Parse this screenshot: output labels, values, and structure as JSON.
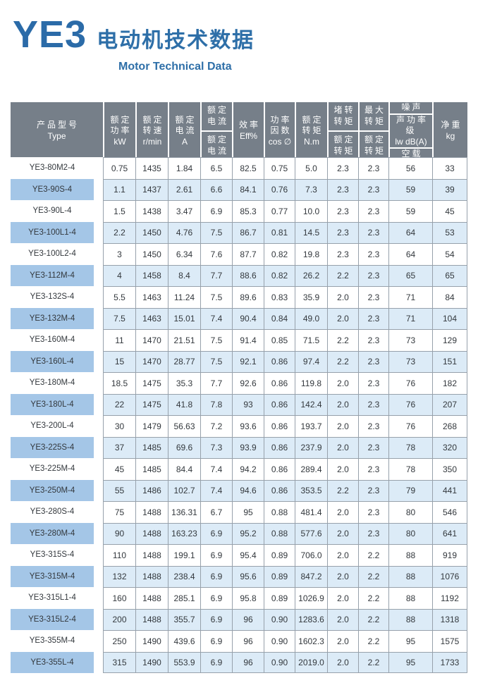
{
  "title": {
    "brand": "YE3",
    "heading": "电动机技术数据",
    "subtitle": "Motor Technical Data"
  },
  "colors": {
    "accent_blue": "#2b6ba8",
    "header_bg": "#767f89",
    "stripe_bg": "#dcebf7",
    "type_chip_bg": "#a4c6e7",
    "grid_border": "#97a1ab"
  },
  "table": {
    "columns": [
      {
        "id": "type",
        "groups": [
          [
            "产品型号",
            "Type"
          ]
        ]
      },
      {
        "id": "rated-power",
        "groups": [
          [
            "额定",
            "功率",
            "kW"
          ]
        ]
      },
      {
        "id": "rated-speed",
        "groups": [
          [
            "额定",
            "转速",
            "r/min"
          ]
        ]
      },
      {
        "id": "rated-current",
        "groups": [
          [
            "额定",
            "电流",
            "A"
          ]
        ]
      },
      {
        "id": "current-ratio",
        "groups": [
          [
            "额定",
            "电流"
          ],
          [
            "额定",
            "电流"
          ]
        ]
      },
      {
        "id": "efficiency",
        "groups": [
          [
            "效率",
            "Eff%"
          ]
        ]
      },
      {
        "id": "power-factor",
        "groups": [
          [
            "功率",
            "因数",
            "cos ∅"
          ]
        ]
      },
      {
        "id": "rated-torque",
        "groups": [
          [
            "额定",
            "转矩",
            "N.m"
          ]
        ]
      },
      {
        "id": "locked-rotor-torque-ratio",
        "groups": [
          [
            "堵转",
            "转矩"
          ],
          [
            "额定",
            "转矩"
          ]
        ]
      },
      {
        "id": "max-torque-ratio",
        "groups": [
          [
            "最大",
            "转矩"
          ],
          [
            "额定",
            "转矩"
          ]
        ]
      },
      {
        "id": "noise",
        "groups": [
          [
            "噪声"
          ],
          [
            "声功率级",
            "lw dB(A)"
          ],
          [
            "空载"
          ]
        ]
      },
      {
        "id": "net-weight",
        "groups": [
          [
            "净重",
            "kg"
          ]
        ]
      }
    ],
    "rows": [
      [
        "YE3-80M2-4",
        "0.75",
        "1435",
        "1.84",
        "6.5",
        "82.5",
        "0.75",
        "5.0",
        "2.3",
        "2.3",
        "56",
        "33"
      ],
      [
        "YE3-90S-4",
        "1.1",
        "1437",
        "2.61",
        "6.6",
        "84.1",
        "0.76",
        "7.3",
        "2.3",
        "2.3",
        "59",
        "39"
      ],
      [
        "YE3-90L-4",
        "1.5",
        "1438",
        "3.47",
        "6.9",
        "85.3",
        "0.77",
        "10.0",
        "2.3",
        "2.3",
        "59",
        "45"
      ],
      [
        "YE3-100L1-4",
        "2.2",
        "1450",
        "4.76",
        "7.5",
        "86.7",
        "0.81",
        "14.5",
        "2.3",
        "2.3",
        "64",
        "53"
      ],
      [
        "YE3-100L2-4",
        "3",
        "1450",
        "6.34",
        "7.6",
        "87.7",
        "0.82",
        "19.8",
        "2.3",
        "2.3",
        "64",
        "54"
      ],
      [
        "YE3-112M-4",
        "4",
        "1458",
        "8.4",
        "7.7",
        "88.6",
        "0.82",
        "26.2",
        "2.2",
        "2.3",
        "65",
        "65"
      ],
      [
        "YE3-132S-4",
        "5.5",
        "1463",
        "11.24",
        "7.5",
        "89.6",
        "0.83",
        "35.9",
        "2.0",
        "2.3",
        "71",
        "84"
      ],
      [
        "YE3-132M-4",
        "7.5",
        "1463",
        "15.01",
        "7.4",
        "90.4",
        "0.84",
        "49.0",
        "2.0",
        "2.3",
        "71",
        "104"
      ],
      [
        "YE3-160M-4",
        "11",
        "1470",
        "21.51",
        "7.5",
        "91.4",
        "0.85",
        "71.5",
        "2.2",
        "2.3",
        "73",
        "129"
      ],
      [
        "YE3-160L-4",
        "15",
        "1470",
        "28.77",
        "7.5",
        "92.1",
        "0.86",
        "97.4",
        "2.2",
        "2.3",
        "73",
        "151"
      ],
      [
        "YE3-180M-4",
        "18.5",
        "1475",
        "35.3",
        "7.7",
        "92.6",
        "0.86",
        "119.8",
        "2.0",
        "2.3",
        "76",
        "182"
      ],
      [
        "YE3-180L-4",
        "22",
        "1475",
        "41.8",
        "7.8",
        "93",
        "0.86",
        "142.4",
        "2.0",
        "2.3",
        "76",
        "207"
      ],
      [
        "YE3-200L-4",
        "30",
        "1479",
        "56.63",
        "7.2",
        "93.6",
        "0.86",
        "193.7",
        "2.0",
        "2.3",
        "76",
        "268"
      ],
      [
        "YE3-225S-4",
        "37",
        "1485",
        "69.6",
        "7.3",
        "93.9",
        "0.86",
        "237.9",
        "2.0",
        "2.3",
        "78",
        "320"
      ],
      [
        "YE3-225M-4",
        "45",
        "1485",
        "84.4",
        "7.4",
        "94.2",
        "0.86",
        "289.4",
        "2.0",
        "2.3",
        "78",
        "350"
      ],
      [
        "YE3-250M-4",
        "55",
        "1486",
        "102.7",
        "7.4",
        "94.6",
        "0.86",
        "353.5",
        "2.2",
        "2.3",
        "79",
        "441"
      ],
      [
        "YE3-280S-4",
        "75",
        "1488",
        "136.31",
        "6.7",
        "95",
        "0.88",
        "481.4",
        "2.0",
        "2.3",
        "80",
        "546"
      ],
      [
        "YE3-280M-4",
        "90",
        "1488",
        "163.23",
        "6.9",
        "95.2",
        "0.88",
        "577.6",
        "2.0",
        "2.3",
        "80",
        "641"
      ],
      [
        "YE3-315S-4",
        "110",
        "1488",
        "199.1",
        "6.9",
        "95.4",
        "0.89",
        "706.0",
        "2.0",
        "2.2",
        "88",
        "919"
      ],
      [
        "YE3-315M-4",
        "132",
        "1488",
        "238.4",
        "6.9",
        "95.6",
        "0.89",
        "847.2",
        "2.0",
        "2.2",
        "88",
        "1076"
      ],
      [
        "YE3-315L1-4",
        "160",
        "1488",
        "285.1",
        "6.9",
        "95.8",
        "0.89",
        "1026.9",
        "2.0",
        "2.2",
        "88",
        "1192"
      ],
      [
        "YE3-315L2-4",
        "200",
        "1488",
        "355.7",
        "6.9",
        "96",
        "0.90",
        "1283.6",
        "2.0",
        "2.2",
        "88",
        "1318"
      ],
      [
        "YE3-355M-4",
        "250",
        "1490",
        "439.6",
        "6.9",
        "96",
        "0.90",
        "1602.3",
        "2.0",
        "2.2",
        "95",
        "1575"
      ],
      [
        "YE3-355L-4",
        "315",
        "1490",
        "553.9",
        "6.9",
        "96",
        "0.90",
        "2019.0",
        "2.0",
        "2.2",
        "95",
        "1733"
      ]
    ]
  }
}
